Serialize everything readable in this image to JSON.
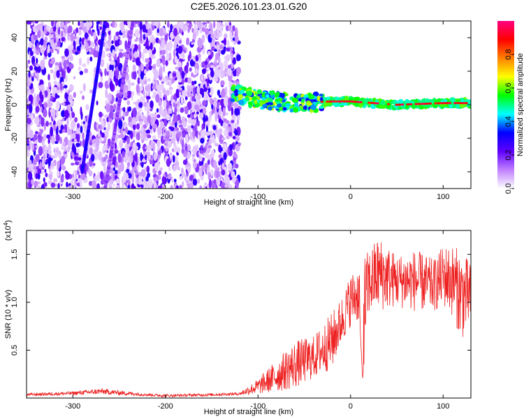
{
  "title": "C2E5.2026.101.23.01.G20",
  "chart_data": [
    {
      "type": "heatmap",
      "xlabel": "Height of straight line (km)",
      "ylabel": "Frequency (Hz)",
      "xlim": [
        -350,
        130
      ],
      "ylim": [
        -50,
        50
      ],
      "xticks": [
        -300,
        -200,
        -100,
        0,
        100
      ],
      "yticks": [
        -40,
        -20,
        0,
        20,
        40
      ],
      "xtick_labels": [
        "-300",
        "-200",
        "-100",
        "0",
        "100"
      ],
      "ytick_labels": [
        "-40",
        "-20",
        "0",
        "20",
        "40"
      ],
      "colorbar": {
        "label": "Normalized spectral amplitude",
        "range": [
          0,
          1
        ],
        "ticks": [
          0.0,
          0.2,
          0.4,
          0.6,
          0.8
        ],
        "tick_labels": [
          "0.0",
          "0.2",
          "0.4",
          "0.6",
          "0.8"
        ],
        "colors": [
          "#ffffff",
          "#c080ff",
          "#6000ff",
          "#0000ff",
          "#00ffff",
          "#00ff00",
          "#ffff00",
          "#ff8000",
          "#ff0000",
          "#ff0080"
        ]
      },
      "regions": [
        {
          "name": "noise",
          "x_range": [
            -350,
            -120
          ],
          "y_range": [
            -50,
            50
          ],
          "amplitude": 0.1
        },
        {
          "name": "streak-1",
          "x_start": -290,
          "x_end": -265,
          "y_start": -40,
          "y_end": 50,
          "amplitude": 0.25
        },
        {
          "name": "streak-2",
          "x_start": -265,
          "x_end": -235,
          "y_start": -50,
          "y_end": 50,
          "amplitude": 0.12
        },
        {
          "name": "carrier",
          "x_range": [
            -130,
            130
          ],
          "y_center": [
            [
              -130,
              8
            ],
            [
              -100,
              3
            ],
            [
              -60,
              1
            ],
            [
              -20,
              2
            ],
            [
              0,
              2
            ],
            [
              50,
              0
            ],
            [
              100,
              1
            ],
            [
              130,
              1
            ]
          ],
          "amplitude": 0.95
        }
      ]
    },
    {
      "type": "line",
      "color": "#ee2222",
      "xlabel": "Height of straight line (km)",
      "ylabel": "SNR (10 * v/v)",
      "multiplier_label": "(x10",
      "multiplier_exp": "4",
      "xlim": [
        -350,
        130
      ],
      "ylim": [
        0,
        1.75
      ],
      "xticks": [
        -300,
        -200,
        -100,
        0,
        100
      ],
      "yticks": [
        0.5,
        1.0,
        1.5
      ],
      "xtick_labels": [
        "-300",
        "-200",
        "-100",
        "0",
        "100"
      ],
      "ytick_labels": [
        "0.5",
        "1.0",
        "1.5"
      ],
      "envelope": {
        "x": [
          -350,
          -300,
          -270,
          -250,
          -220,
          -200,
          -150,
          -120,
          -100,
          -80,
          -60,
          -40,
          -20,
          -10,
          0,
          10,
          13,
          20,
          30,
          50,
          70,
          90,
          100,
          110,
          120,
          130
        ],
        "low": [
          0.02,
          0.03,
          0.04,
          0.03,
          0.02,
          0.01,
          0.02,
          0.03,
          0.04,
          0.06,
          0.1,
          0.2,
          0.3,
          0.55,
          0.75,
          0.8,
          0.2,
          0.85,
          0.9,
          0.95,
          0.9,
          0.9,
          0.95,
          0.85,
          0.6,
          0.75
        ],
        "high": [
          0.05,
          0.07,
          0.1,
          0.08,
          0.05,
          0.04,
          0.05,
          0.06,
          0.2,
          0.4,
          0.6,
          0.65,
          0.9,
          1.05,
          1.3,
          1.4,
          1.5,
          1.55,
          1.7,
          1.5,
          1.55,
          1.45,
          1.6,
          1.6,
          1.55,
          1.4
        ]
      }
    }
  ]
}
